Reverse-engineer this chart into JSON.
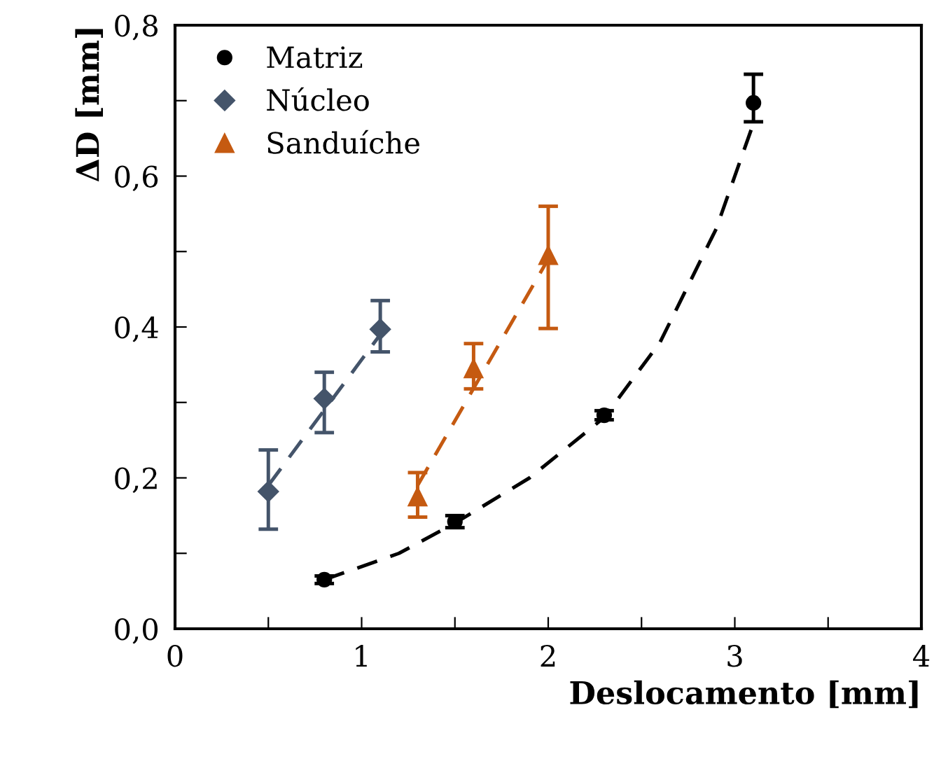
{
  "chart_data": {
    "type": "scatter",
    "xlabel": "Deslocamento [mm]",
    "ylabel": "ΔD [mm]",
    "xlim": [
      0,
      4
    ],
    "ylim": [
      0,
      0.8
    ],
    "xticks": [
      0,
      {
        "value": 0.5,
        "label": null
      },
      1,
      {
        "value": 1.5,
        "label": null
      },
      2,
      {
        "value": 2.5,
        "label": null
      },
      3,
      {
        "value": 3.5,
        "label": null
      },
      4
    ],
    "yticks": [
      {
        "value": 0,
        "label": "0,0"
      },
      {
        "value": 0.1,
        "label": null
      },
      {
        "value": 0.2,
        "label": "0,2"
      },
      {
        "value": 0.3,
        "label": null
      },
      {
        "value": 0.4,
        "label": "0,4"
      },
      {
        "value": 0.5,
        "label": null
      },
      {
        "value": 0.6,
        "label": "0,6"
      },
      {
        "value": 0.7,
        "label": null
      },
      {
        "value": 0.8,
        "label": "0,8"
      }
    ],
    "grid": false,
    "legend": "top left",
    "series": [
      {
        "name": "Matriz",
        "color": "#000000",
        "marker": "circle",
        "x": [
          0.8,
          1.5,
          2.3,
          3.1
        ],
        "values": [
          0.065,
          0.142,
          0.283,
          0.697
        ],
        "errors": [
          0.005,
          0.008,
          0.006,
          [
            0.672,
            0.735
          ]
        ]
      },
      {
        "name": "Núcleo",
        "color": "#44546a",
        "marker": "diamond",
        "x": [
          0.5,
          0.8,
          1.1
        ],
        "values": [
          0.182,
          0.305,
          0.397
        ],
        "errors": [
          [
            0.132,
            0.237
          ],
          [
            0.26,
            0.34
          ],
          [
            0.367,
            0.435
          ]
        ]
      },
      {
        "name": "Sanduíche",
        "color": "#c55a11",
        "marker": "triangle",
        "x": [
          1.3,
          1.6,
          2.0
        ],
        "values": [
          0.175,
          0.345,
          0.495
        ],
        "errors": [
          [
            0.148,
            0.207
          ],
          [
            0.318,
            0.378
          ],
          [
            0.398,
            0.56
          ]
        ]
      },
      {
        "type": "line",
        "color": "#000000",
        "line_style": "dashed",
        "marker": "none",
        "x": [
          0.8,
          1.2,
          1.5,
          1.9,
          2.3,
          2.6,
          2.9,
          3.1
        ],
        "values": [
          0.065,
          0.1,
          0.14,
          0.2,
          0.28,
          0.38,
          0.53,
          0.67
        ]
      },
      {
        "type": "line",
        "color": "#44546a",
        "line_style": "dashed",
        "marker": "none",
        "x": [
          0.5,
          1.1
        ],
        "values": [
          0.19,
          0.39
        ]
      },
      {
        "type": "line",
        "color": "#c55a11",
        "line_style": "dashed",
        "marker": "none",
        "x": [
          1.3,
          2.0
        ],
        "values": [
          0.19,
          0.49
        ]
      }
    ]
  }
}
